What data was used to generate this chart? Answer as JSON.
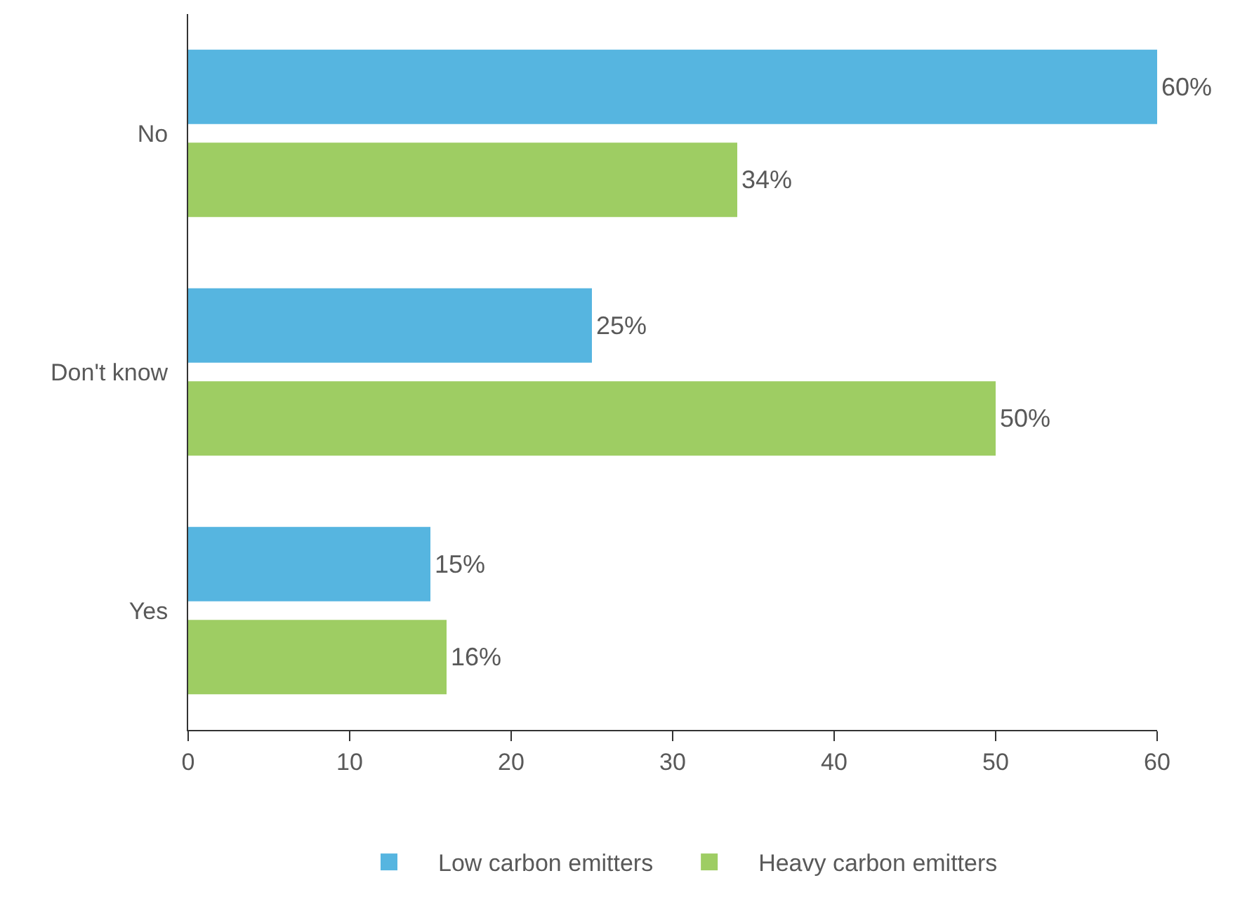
{
  "chart_data": {
    "type": "bar",
    "orientation": "horizontal",
    "categories": [
      "No",
      "Don't know",
      "Yes"
    ],
    "series": [
      {
        "name": "Low carbon emitters",
        "color": "#56b5e0",
        "values": [
          60,
          25,
          15
        ],
        "value_labels": [
          "60%",
          "25%",
          "15%"
        ]
      },
      {
        "name": "Heavy carbon emitters",
        "color": "#9ecd63",
        "values": [
          34,
          50,
          16
        ],
        "value_labels": [
          "34%",
          "50%",
          "16%"
        ]
      }
    ],
    "xlim": [
      0,
      60
    ],
    "xticks": [
      0,
      10,
      20,
      30,
      40,
      50,
      60
    ],
    "grid": false,
    "legend": "bottom"
  }
}
